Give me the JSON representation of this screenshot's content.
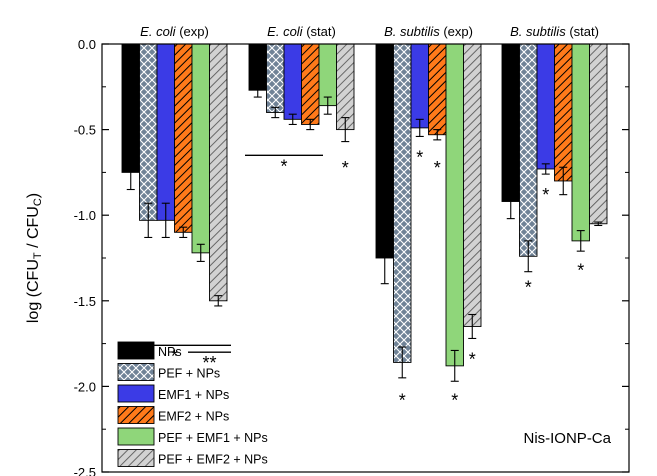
{
  "chart_data": {
    "type": "bar",
    "categories": [
      "E. coli (exp)",
      "E. coli (stat)",
      "B. subtilis (exp)",
      "B. subtilis (stat)"
    ],
    "category_labels": [
      {
        "organism": "E. coli",
        "phase": "(exp)"
      },
      {
        "organism": "E. coli",
        "phase": "(stat)"
      },
      {
        "organism": "B. subtilis",
        "phase": "(exp)"
      },
      {
        "organism": "B. subtilis",
        "phase": "(stat)"
      }
    ],
    "series": [
      {
        "name": "NPs",
        "values": [
          -0.75,
          -0.27,
          -1.25,
          -0.92
        ],
        "errors": [
          0.1,
          0.04,
          0.15,
          0.1
        ],
        "color": "#000000",
        "pattern": "solid"
      },
      {
        "name": "PEF + NPs",
        "values": [
          -1.03,
          -0.4,
          -1.86,
          -1.24
        ],
        "errors": [
          0.1,
          0.03,
          0.09,
          0.09
        ],
        "color": "#6f8296",
        "pattern": "crosshatch"
      },
      {
        "name": "EMF1 + NPs",
        "values": [
          -1.03,
          -0.44,
          -0.49,
          -0.73
        ],
        "errors": [
          0.1,
          0.03,
          0.05,
          0.03
        ],
        "color": "#3b3be6",
        "pattern": "solid"
      },
      {
        "name": "EMF2 + NPs",
        "values": [
          -1.1,
          -0.47,
          -0.53,
          -0.8
        ],
        "errors": [
          0.03,
          0.03,
          0.03,
          0.08
        ],
        "color": "#ff7a1a",
        "pattern": "diagonal"
      },
      {
        "name": "PEF + EMF1 + NPs",
        "values": [
          -1.22,
          -0.36,
          -1.88,
          -1.15
        ],
        "errors": [
          0.05,
          0.05,
          0.09,
          0.06
        ],
        "color": "#8fd67a",
        "pattern": "solid"
      },
      {
        "name": "PEF + EMF2 + NPs",
        "values": [
          -1.5,
          -0.5,
          -1.65,
          -1.05
        ],
        "errors": [
          0.03,
          0.07,
          0.07,
          0.01
        ],
        "color": "#c8c8c8",
        "pattern": "diagonal"
      }
    ],
    "ylabel": "log (CFU_T / CFU_C)",
    "ylabel_parts": {
      "pre": "log (CFU",
      "sub1": "T",
      "mid": " / CFU",
      "sub2": "C",
      "post": ")"
    },
    "ylim": [
      -2.5,
      0.0
    ],
    "yticks": [
      0.0,
      -0.5,
      -1.0,
      -1.5,
      -2.0,
      -2.5
    ],
    "ytick_labels": [
      "0.0",
      "-0.5",
      "-1.0",
      "-1.5",
      "-2.0",
      "-2.5"
    ],
    "annotation": "Nis-IONP-Ca",
    "legend_position": "bottom-left",
    "grid": false,
    "significance": [
      {
        "label": "*",
        "category": 0,
        "series": [
          0,
          5
        ],
        "line": true,
        "y": -1.76
      },
      {
        "label": "**",
        "category": 0,
        "series": [
          4,
          5
        ],
        "line": true,
        "y": -1.8
      },
      {
        "label": "*",
        "category": 1,
        "series": [
          0,
          3
        ],
        "line": true,
        "y": -0.65
      },
      {
        "label": "*",
        "category": 1,
        "series": [
          5
        ],
        "line": false,
        "y": -0.7
      },
      {
        "label": "*",
        "category": 2,
        "series": [
          1
        ],
        "line": false,
        "y": -2.06
      },
      {
        "label": "*",
        "category": 2,
        "series": [
          2
        ],
        "line": false,
        "y": -0.64
      },
      {
        "label": "*",
        "category": 2,
        "series": [
          3
        ],
        "line": false,
        "y": -0.7
      },
      {
        "label": "*",
        "category": 2,
        "series": [
          4
        ],
        "line": false,
        "y": -2.06
      },
      {
        "label": "*",
        "category": 2,
        "series": [
          5
        ],
        "line": false,
        "y": -1.82
      },
      {
        "label": "*",
        "category": 3,
        "series": [
          1
        ],
        "line": false,
        "y": -1.4
      },
      {
        "label": "*",
        "category": 3,
        "series": [
          2
        ],
        "line": false,
        "y": -0.86
      },
      {
        "label": "*",
        "category": 3,
        "series": [
          4
        ],
        "line": false,
        "y": -1.3
      }
    ]
  }
}
